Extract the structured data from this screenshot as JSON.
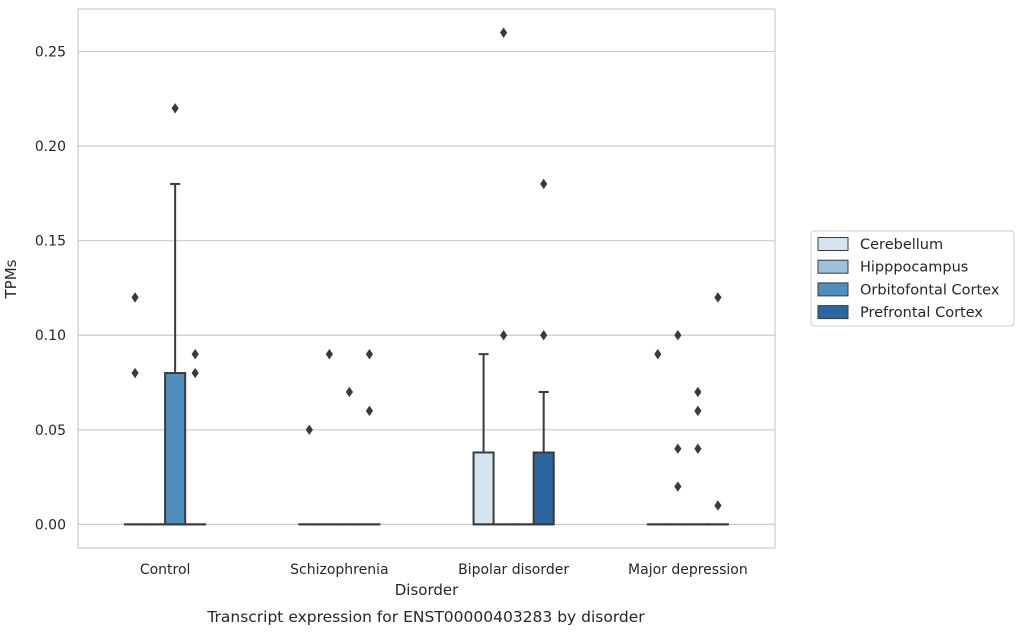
{
  "chart_data": {
    "type": "box",
    "title": "Transcript expression for ENST00000403283 by disorder",
    "xlabel": "Disorder",
    "ylabel": "TPMs",
    "ylim": [
      -0.0125,
      0.2725
    ],
    "yticks": [
      "0.00",
      "0.05",
      "0.10",
      "0.15",
      "0.20",
      "0.25"
    ],
    "ytick_values": [
      0,
      0.05,
      0.1,
      0.15,
      0.2,
      0.25
    ],
    "grid": "horizontal",
    "legend_position": "right",
    "categories": [
      "Control",
      "Schizophrenia",
      "Bipolar disorder",
      "Major depression"
    ],
    "series": [
      {
        "name": "Cerebellum",
        "color": "#d6e4f1",
        "boxes": [
          {
            "q1": 0,
            "median": 0,
            "q3": 0,
            "whisker_low": 0,
            "whisker_high": 0,
            "outliers": [
              0.12,
              0.08
            ]
          },
          {
            "q1": 0,
            "median": 0,
            "q3": 0,
            "whisker_low": 0,
            "whisker_high": 0,
            "outliers": [
              0.05
            ]
          },
          {
            "q1": 0,
            "median": 0,
            "q3": 0.038,
            "whisker_low": 0,
            "whisker_high": 0.09,
            "outliers": []
          },
          {
            "q1": 0,
            "median": 0,
            "q3": 0,
            "whisker_low": 0,
            "whisker_high": 0,
            "outliers": [
              0.09
            ]
          }
        ]
      },
      {
        "name": "Hipppocampus",
        "color": "#9ac2dd",
        "boxes": [
          {
            "q1": 0,
            "median": 0,
            "q3": 0,
            "whisker_low": 0,
            "whisker_high": 0,
            "outliers": []
          },
          {
            "q1": 0,
            "median": 0,
            "q3": 0,
            "whisker_low": 0,
            "whisker_high": 0,
            "outliers": [
              0.09
            ]
          },
          {
            "q1": 0,
            "median": 0,
            "q3": 0,
            "whisker_low": 0,
            "whisker_high": 0,
            "outliers": [
              0.26,
              0.1
            ]
          },
          {
            "q1": 0,
            "median": 0,
            "q3": 0,
            "whisker_low": 0,
            "whisker_high": 0,
            "outliers": [
              0.1,
              0.04,
              0.02
            ]
          }
        ]
      },
      {
        "name": "Orbitofontal Cortex",
        "color": "#4f8fbf",
        "boxes": [
          {
            "q1": 0,
            "median": 0,
            "q3": 0.08,
            "whisker_low": 0,
            "whisker_high": 0.18,
            "outliers": [
              0.22
            ]
          },
          {
            "q1": 0,
            "median": 0,
            "q3": 0,
            "whisker_low": 0,
            "whisker_high": 0,
            "outliers": [
              0.07
            ]
          },
          {
            "q1": 0,
            "median": 0,
            "q3": 0,
            "whisker_low": 0,
            "whisker_high": 0,
            "outliers": []
          },
          {
            "q1": 0,
            "median": 0,
            "q3": 0,
            "whisker_low": 0,
            "whisker_high": 0,
            "outliers": [
              0.07,
              0.06,
              0.04
            ]
          }
        ]
      },
      {
        "name": "Prefrontal Cortex",
        "color": "#2b66a1",
        "boxes": [
          {
            "q1": 0,
            "median": 0,
            "q3": 0,
            "whisker_low": 0,
            "whisker_high": 0,
            "outliers": [
              0.09,
              0.08
            ]
          },
          {
            "q1": 0,
            "median": 0,
            "q3": 0,
            "whisker_low": 0,
            "whisker_high": 0,
            "outliers": [
              0.09,
              0.06
            ]
          },
          {
            "q1": 0,
            "median": 0,
            "q3": 0.038,
            "whisker_low": 0,
            "whisker_high": 0.07,
            "outliers": [
              0.18,
              0.1
            ]
          },
          {
            "q1": 0,
            "median": 0,
            "q3": 0,
            "whisker_low": 0,
            "whisker_high": 0,
            "outliers": [
              0.12,
              0.01
            ]
          }
        ]
      }
    ]
  },
  "colors": {
    "grid": "#cccccc",
    "frame": "#cccccc",
    "box_edge": "#3a3a3a",
    "outlier": "#3a3a3a"
  }
}
